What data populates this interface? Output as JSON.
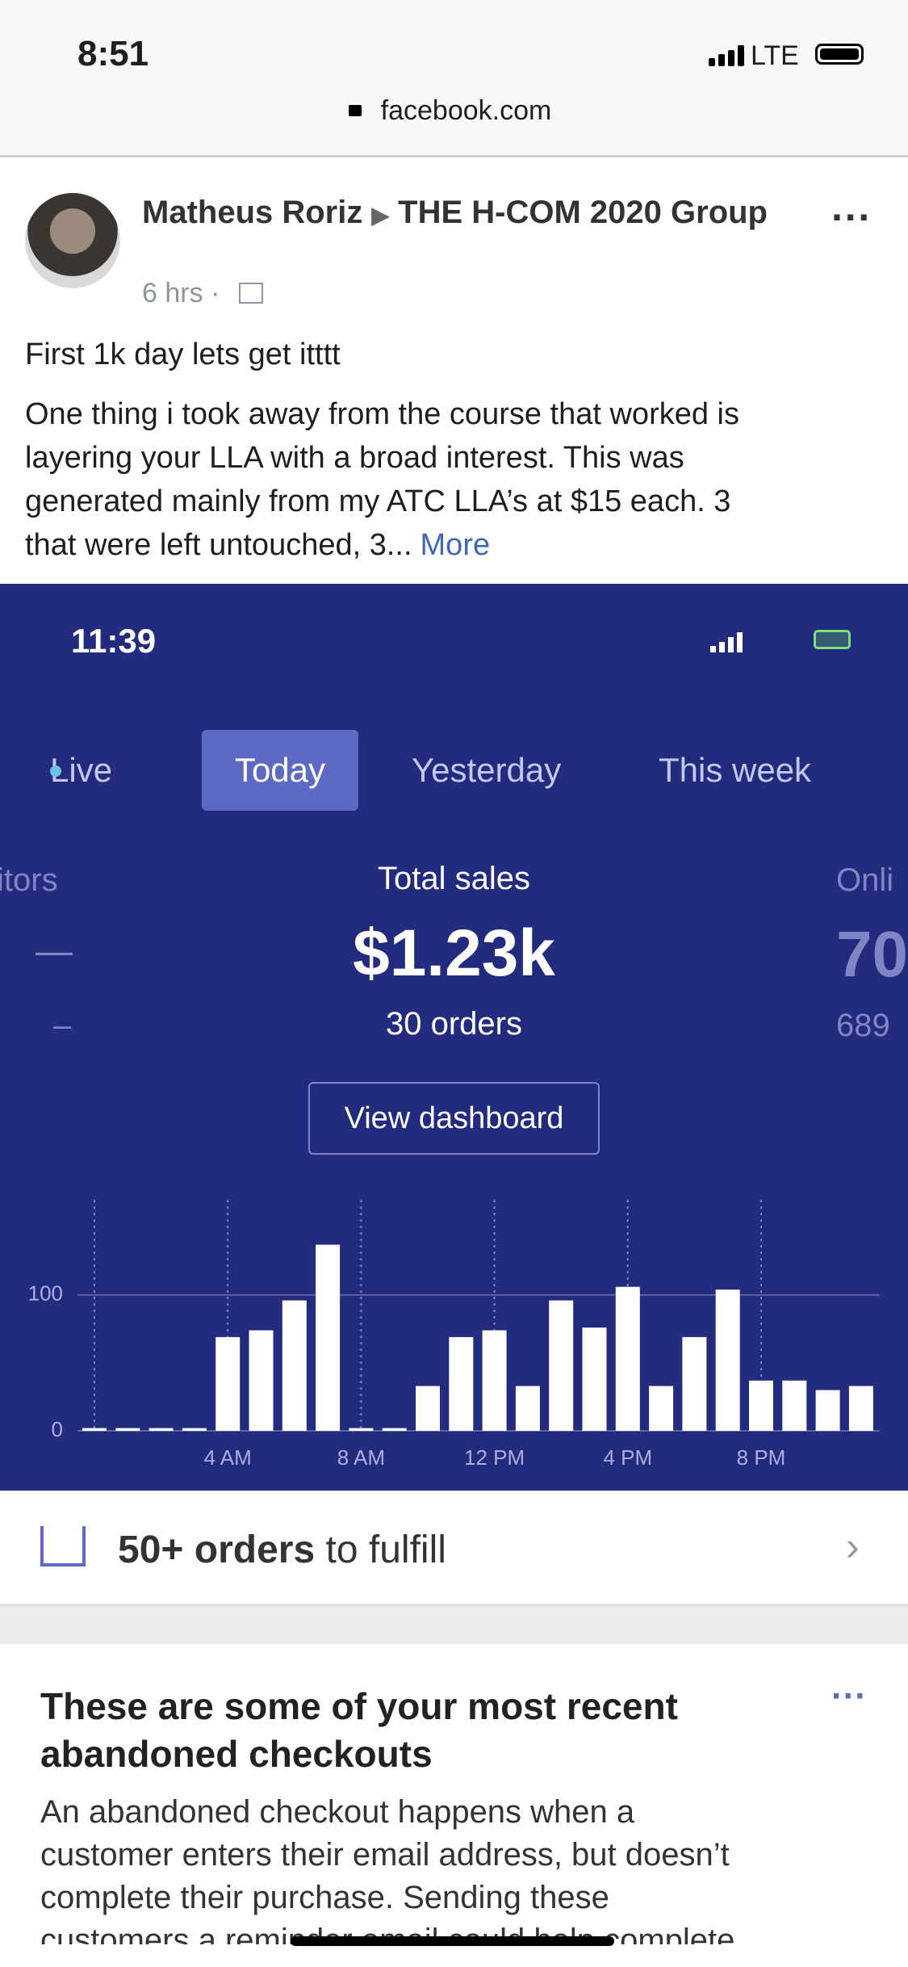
{
  "status_bar": {
    "time": "8:51",
    "network": "LTE"
  },
  "url": "facebook.com",
  "post": {
    "author": "Matheus Roriz",
    "group": "THE H-COM 2020 Group",
    "time": "6 hrs ·",
    "headline": "First 1k day lets get itttt",
    "body": [
      "One thing i took away from the course that worked is",
      "layering your LLA with a broad interest. This was",
      "generated mainly from my ATC LLA’s at $15 each. 3",
      "that were left untouched, 3..."
    ],
    "more": "More"
  },
  "embed": {
    "status_time": "11:39",
    "tabs": [
      "Live",
      "Today",
      "Yesterday",
      "This week"
    ],
    "left_label": "itors",
    "left_value": "—",
    "left_sub": "–",
    "title": "Total sales",
    "value": "$1.23k",
    "orders": "30 orders",
    "right_label": "Onli",
    "right_value": "70",
    "right_sub": "689",
    "button": "View dashboard"
  },
  "chart_data": {
    "type": "bar",
    "categories": [
      null,
      null,
      null,
      null,
      "4 AM",
      null,
      null,
      null,
      "8 AM",
      null,
      null,
      null,
      "12 PM",
      null,
      null,
      null,
      "4 PM",
      null,
      null,
      null,
      "8 PM",
      null,
      null,
      null
    ],
    "values": [
      2,
      2,
      2,
      2,
      69,
      74,
      96,
      137,
      2,
      2,
      33,
      69,
      74,
      33,
      96,
      76,
      106,
      33,
      69,
      104,
      37,
      37,
      30,
      33
    ],
    "color": "#ffffff",
    "ylim": [
      0,
      170
    ],
    "yticks": [
      0,
      100
    ],
    "grid": true
  },
  "fulfill": {
    "count": "50+ orders",
    "rest": "to fulfill"
  },
  "card": {
    "title": [
      "These are some of your most recent",
      "abandoned checkouts"
    ],
    "body": [
      "An abandoned checkout happens when a",
      "customer enters their email address, but doesn’t",
      "complete their purchase. Sending these",
      "customers a reminder email could help complete"
    ]
  }
}
